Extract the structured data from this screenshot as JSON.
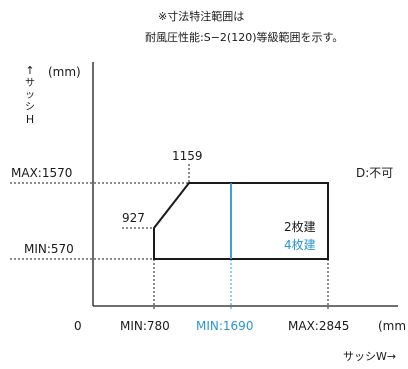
{
  "note": {
    "line1": "※寸法特注範囲は",
    "line2": "耐風圧性能:S−2(120)等級範囲を示す。"
  },
  "axes": {
    "y_unit": "(mm)",
    "y_label_vertical": [
      "↑",
      "サ",
      "ッ",
      "シ",
      "H"
    ],
    "x_unit": "(mm",
    "x_label": "サッシW→",
    "origin": "0"
  },
  "chart_data": {
    "type": "area",
    "x_ticks": [
      "MIN:780",
      "MIN:1690",
      "MAX:2845"
    ],
    "y_ticks": [
      "MAX:1570",
      "MIN:570"
    ],
    "region": [
      {
        "w": 780,
        "h": 570
      },
      {
        "w": 780,
        "h": 927
      },
      {
        "w": 1159,
        "h": 1570
      },
      {
        "w": 2845,
        "h": 1570
      },
      {
        "w": 2845,
        "h": 570
      }
    ],
    "divider_w": 1690,
    "annotations": {
      "corner_h": "927",
      "corner_w": "1159",
      "outside_label": "D:不可",
      "inside_label_2": "2枚建",
      "inside_label_4": "4枚建"
    },
    "colors": {
      "primary": "#1a1a1a",
      "accent": "#2a96d4"
    }
  }
}
